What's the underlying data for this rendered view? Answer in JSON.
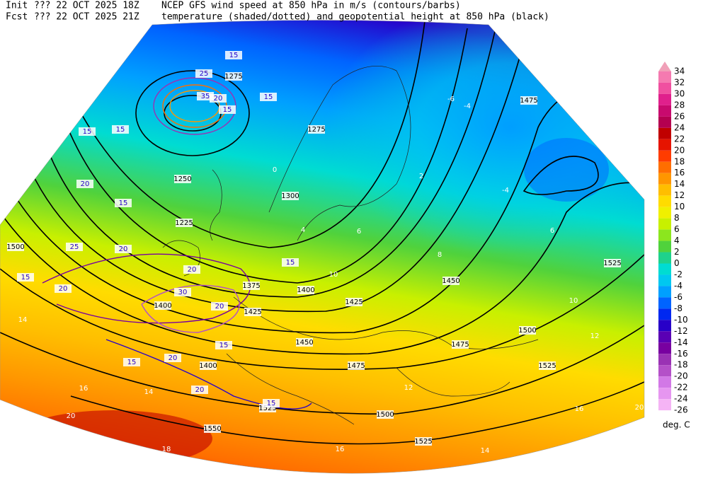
{
  "header": {
    "init_label": "Init",
    "init_time": "??? 22 OCT 2025 18Z",
    "fcst_label": "Fcst",
    "fcst_time": "??? 22 OCT 2025 21Z",
    "title_line1": "NCEP GFS wind speed at 850 hPa in m/s (contours/barbs)",
    "title_line2": "temperature (shaded/dotted) and geopotential height at 850 hPa (black)"
  },
  "colorbar": {
    "unit": "deg. C",
    "levels": [
      34,
      32,
      30,
      28,
      26,
      24,
      22,
      20,
      18,
      16,
      14,
      12,
      10,
      8,
      6,
      4,
      2,
      0,
      -2,
      -4,
      -6,
      -8,
      -10,
      -12,
      -14,
      -16,
      -18,
      -20,
      -22,
      -24,
      -26
    ],
    "colors": [
      "#f0a0b8",
      "#f57ab0",
      "#f050a0",
      "#e0208c",
      "#c80a6e",
      "#b40050",
      "#c00000",
      "#e61400",
      "#ff3c00",
      "#ff6e00",
      "#ff9600",
      "#ffbe00",
      "#ffdc00",
      "#f0f000",
      "#c8f000",
      "#8ce61e",
      "#50d23c",
      "#1ed28c",
      "#00dcd2",
      "#00c8f0",
      "#00a0ff",
      "#0064ff",
      "#0028f0",
      "#2800c8",
      "#5a00b4",
      "#7800a0",
      "#9a32b4",
      "#b450c8",
      "#d278e6",
      "#e696f0",
      "#f5b4f5"
    ]
  },
  "map_labels": {
    "geopotential": [
      1275,
      1275,
      1250,
      1300,
      1225,
      1375,
      1400,
      1425,
      1450,
      1425,
      1450,
      1475,
      1475,
      1500,
      1525,
      1500,
      1525,
      1525,
      1475,
      1500,
      1400,
      1400,
      1550,
      1525
    ],
    "wind_speed": [
      15,
      15,
      15,
      15,
      15,
      20,
      15,
      20,
      25,
      15,
      20,
      30,
      20,
      15,
      20,
      15,
      20,
      15,
      20,
      15,
      35,
      20,
      25
    ],
    "temperature": [
      0,
      -4,
      4,
      6,
      8,
      10,
      10,
      12,
      12,
      14,
      14,
      16,
      16,
      18,
      20,
      20,
      -6,
      -4,
      2,
      6,
      14,
      16
    ]
  }
}
